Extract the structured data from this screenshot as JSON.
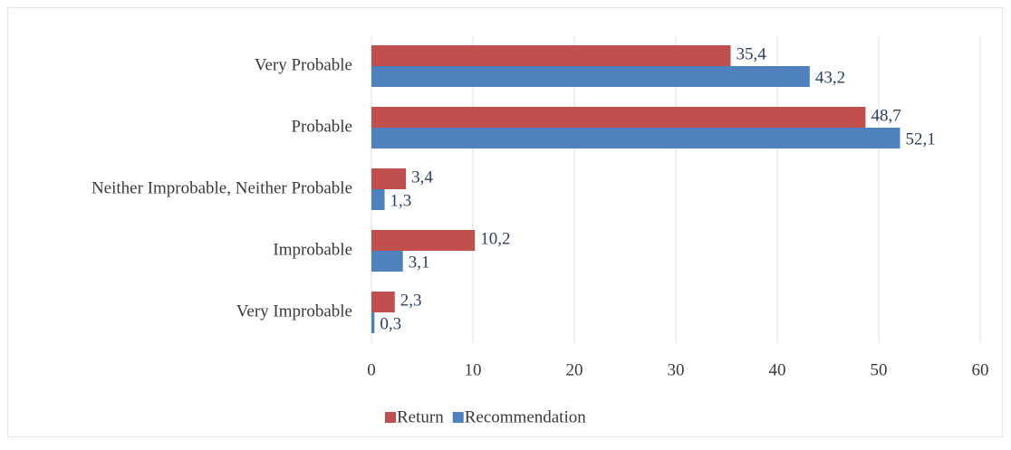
{
  "chart_data": {
    "type": "bar",
    "orientation": "horizontal",
    "categories": [
      "Very Probable",
      "Probable",
      "Neither Improbable, Neither Probable",
      "Improbable",
      "Very Improbable"
    ],
    "series": [
      {
        "name": "Return",
        "color": "#c0504d",
        "values": [
          35.4,
          48.7,
          3.4,
          10.2,
          2.3
        ],
        "value_labels": [
          "35,4",
          "48,7",
          "3,4",
          "10,2",
          "2,3"
        ]
      },
      {
        "name": "Recommendation",
        "color": "#4f81bd",
        "values": [
          43.2,
          52.1,
          1.3,
          3.1,
          0.3
        ],
        "value_labels": [
          "43,2",
          "52,1",
          "1,3",
          "3,1",
          "0,3"
        ]
      }
    ],
    "xlim": [
      0,
      60
    ],
    "xticks": [
      0,
      10,
      20,
      30,
      40,
      50,
      60
    ],
    "grid": true,
    "legend": "bottom"
  }
}
